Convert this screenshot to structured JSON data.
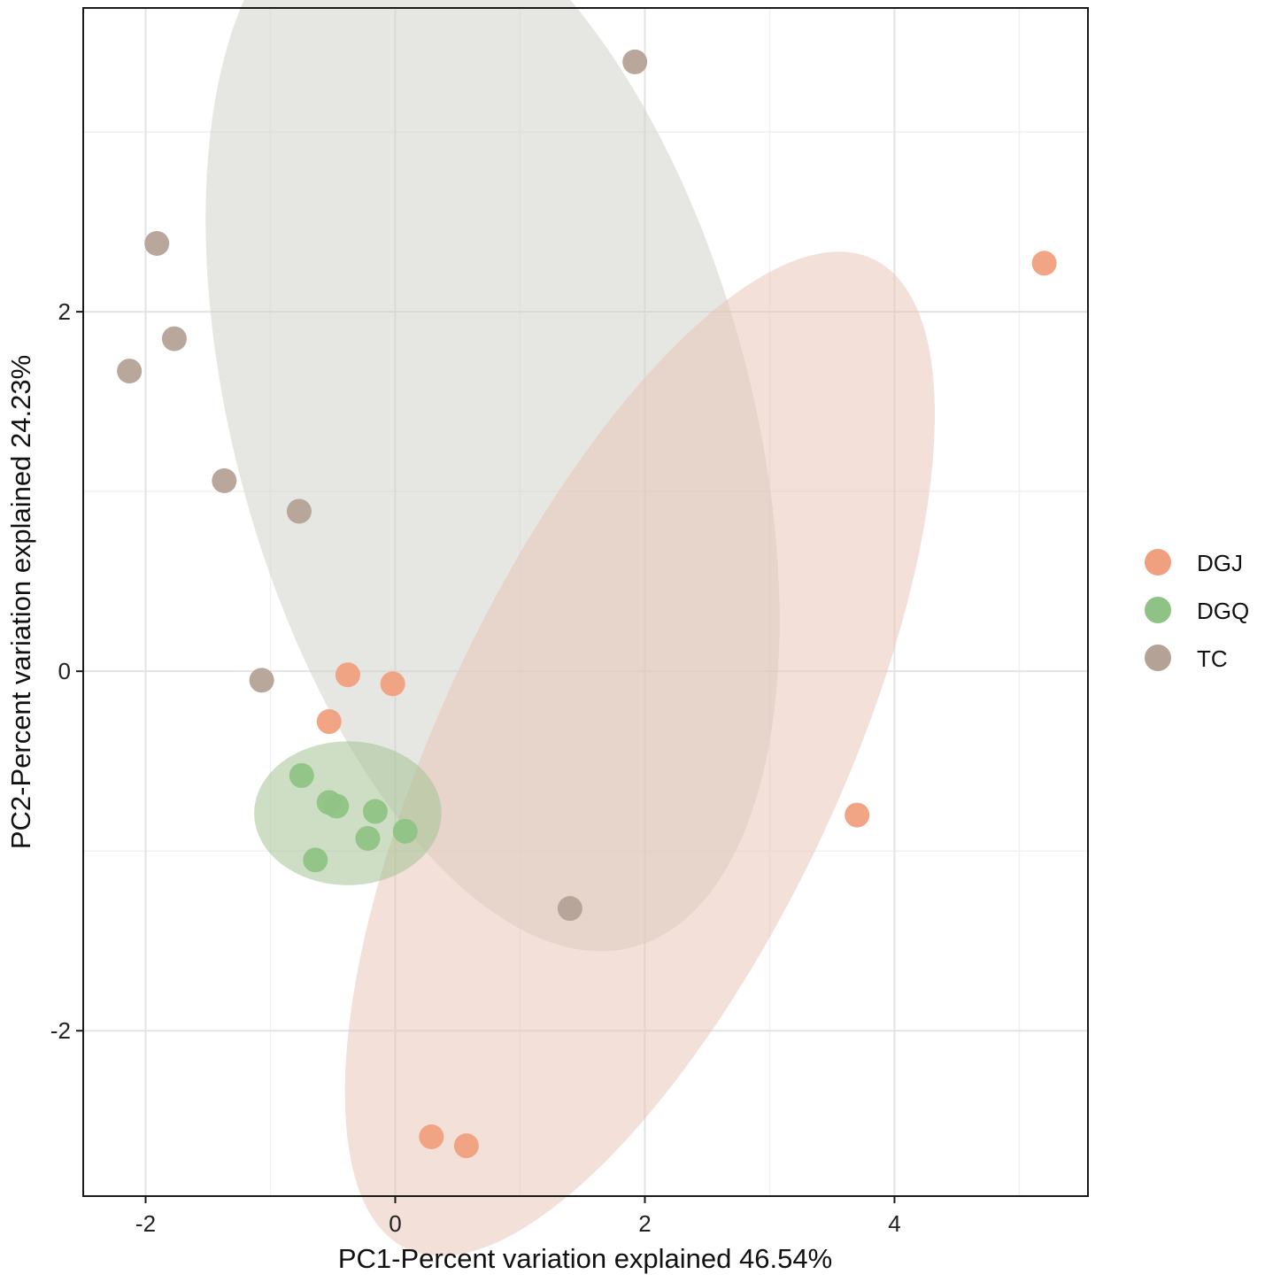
{
  "chart_data": {
    "type": "scatter",
    "title": "",
    "xlabel": "PC1-Percent variation explained 46.54%",
    "ylabel": "PC2-Percent variation explained 24.23%",
    "xlim": [
      -2.5,
      5.55
    ],
    "ylim": [
      -2.92,
      3.69
    ],
    "xticks": [
      -2,
      0,
      2,
      4
    ],
    "xtick_labels": [
      "-2",
      "0",
      "2",
      "4"
    ],
    "yticks": [
      -2,
      0,
      2
    ],
    "ytick_labels": [
      "-2",
      "0",
      "2"
    ],
    "grid": true,
    "legend_position": "right",
    "series": [
      {
        "name": "DGJ",
        "color": "#F0A07E",
        "ellipse_color": "#E7C7BA",
        "points": [
          {
            "x": 5.2,
            "y": 2.27
          },
          {
            "x": -0.38,
            "y": -0.02
          },
          {
            "x": -0.02,
            "y": -0.07
          },
          {
            "x": -0.53,
            "y": -0.28
          },
          {
            "x": 3.7,
            "y": -0.8
          },
          {
            "x": 0.29,
            "y": -2.59
          },
          {
            "x": 0.57,
            "y": -2.64
          }
        ],
        "ellipse": {
          "center": [
            1.96,
            -0.46
          ],
          "semi_axes": [
            3.36,
            1.45
          ],
          "angle_deg": 52
        }
      },
      {
        "name": "DGQ",
        "color": "#8FC385",
        "ellipse_color": "#A5C294",
        "points": [
          {
            "x": -0.75,
            "y": -0.58
          },
          {
            "x": -0.53,
            "y": -0.73
          },
          {
            "x": -0.47,
            "y": -0.75
          },
          {
            "x": -0.16,
            "y": -0.78
          },
          {
            "x": 0.08,
            "y": -0.89
          },
          {
            "x": -0.22,
            "y": -0.93
          },
          {
            "x": -0.64,
            "y": -1.05
          }
        ],
        "ellipse": {
          "center": [
            -0.38,
            -0.79
          ],
          "semi_axes": [
            0.75,
            0.4
          ],
          "angle_deg": 0
        }
      },
      {
        "name": "TC",
        "color": "#B5A297",
        "ellipse_color": "#D2D1CB",
        "points": [
          {
            "x": 1.92,
            "y": 3.39
          },
          {
            "x": -1.91,
            "y": 2.38
          },
          {
            "x": -1.77,
            "y": 1.85
          },
          {
            "x": -2.13,
            "y": 1.67
          },
          {
            "x": -1.37,
            "y": 1.06
          },
          {
            "x": -0.77,
            "y": 0.89
          },
          {
            "x": -1.07,
            "y": -0.05
          },
          {
            "x": 1.4,
            "y": -1.32
          }
        ],
        "ellipse": {
          "center": [
            0.78,
            1.4
          ],
          "semi_axes": [
            3.18,
            1.98
          ],
          "angle_deg": -62
        }
      }
    ]
  }
}
